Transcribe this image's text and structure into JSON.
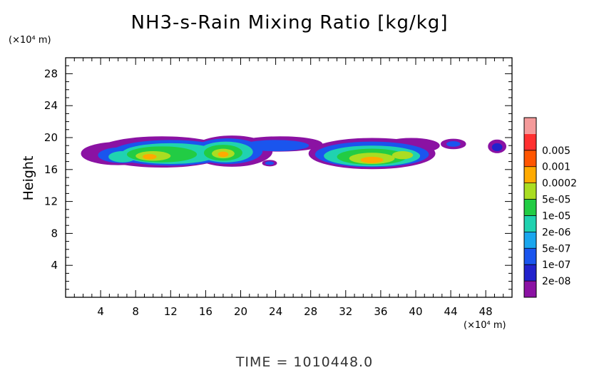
{
  "chart_data": {
    "type": "heatmap",
    "title": "NH3-s-Rain Mixing Ratio [kg/kg]",
    "xlabel": "",
    "ylabel": "Height",
    "x_unit": "(×10⁴ m)",
    "y_unit": "(×10⁴ m)",
    "xlim": [
      0,
      51
    ],
    "ylim": [
      0,
      30
    ],
    "x_ticks": [
      "4",
      "8",
      "12",
      "16",
      "20",
      "24",
      "28",
      "32",
      "36",
      "40",
      "44",
      "48"
    ],
    "y_ticks": [
      "4",
      "8",
      "12",
      "16",
      "20",
      "24",
      "28"
    ],
    "grid": false,
    "colorbar": {
      "levels": [
        "2e-08",
        "1e-07",
        "5e-07",
        "2e-06",
        "1e-05",
        "5e-05",
        "0.0002",
        "0.001",
        "0.005"
      ],
      "colors": [
        "#8b12a3",
        "#2222cc",
        "#1a55ee",
        "#1aa6ee",
        "#20d2b0",
        "#22cc44",
        "#aadd22",
        "#ffaa00",
        "#ff5500",
        "#ff3030",
        "#f49a9a"
      ]
    },
    "cloud_regions": [
      {
        "x": [
          2,
          29
        ],
        "y": [
          16.4,
          20
        ],
        "peak_level": 7
      },
      {
        "x": [
          29,
          42
        ],
        "y": [
          16.2,
          19.8
        ],
        "peak_level": 7
      },
      {
        "x": [
          22.5,
          24
        ],
        "y": [
          16.4,
          17.2
        ],
        "peak_level": 2
      },
      {
        "x": [
          43,
          46
        ],
        "y": [
          18.5,
          19.9
        ],
        "peak_level": 2
      },
      {
        "x": [
          48.5,
          50.5
        ],
        "y": [
          18.0,
          19.8
        ],
        "peak_level": 1
      }
    ],
    "blobs": [
      {
        "x": 6,
        "y": 18.0,
        "rx": 4.2,
        "ry": 1.4,
        "level": 0
      },
      {
        "x": 11,
        "y": 18.2,
        "rx": 7.6,
        "ry": 1.9,
        "level": 0
      },
      {
        "x": 19,
        "y": 18.3,
        "rx": 4.6,
        "ry": 1.9,
        "level": 0
      },
      {
        "x": 24.5,
        "y": 19.2,
        "rx": 4.8,
        "ry": 0.9,
        "level": 0
      },
      {
        "x": 35,
        "y": 18.0,
        "rx": 7.2,
        "ry": 1.9,
        "level": 0
      },
      {
        "x": 39.5,
        "y": 19.0,
        "rx": 3.2,
        "ry": 0.9,
        "level": 0
      },
      {
        "x": 6.5,
        "y": 17.8,
        "rx": 2.8,
        "ry": 1.0,
        "level": 2
      },
      {
        "x": 12,
        "y": 18.1,
        "rx": 6.8,
        "ry": 1.6,
        "level": 2
      },
      {
        "x": 18.5,
        "y": 18.3,
        "rx": 4.0,
        "ry": 1.6,
        "level": 2
      },
      {
        "x": 24,
        "y": 19.0,
        "rx": 3.8,
        "ry": 0.7,
        "level": 2
      },
      {
        "x": 35,
        "y": 17.9,
        "rx": 6.5,
        "ry": 1.6,
        "level": 2
      },
      {
        "x": 6.5,
        "y": 17.6,
        "rx": 1.6,
        "ry": 0.7,
        "level": 4
      },
      {
        "x": 12,
        "y": 18.0,
        "rx": 5.6,
        "ry": 1.3,
        "level": 4
      },
      {
        "x": 18.3,
        "y": 18.2,
        "rx": 3.1,
        "ry": 1.3,
        "level": 4
      },
      {
        "x": 35,
        "y": 17.7,
        "rx": 5.5,
        "ry": 1.3,
        "level": 4
      },
      {
        "x": 11,
        "y": 17.9,
        "rx": 4.0,
        "ry": 1.0,
        "level": 5
      },
      {
        "x": 18,
        "y": 18.1,
        "rx": 2.2,
        "ry": 1.0,
        "level": 5
      },
      {
        "x": 35,
        "y": 17.6,
        "rx": 4.0,
        "ry": 1.0,
        "level": 5
      },
      {
        "x": 10,
        "y": 17.7,
        "rx": 2.0,
        "ry": 0.6,
        "level": 6
      },
      {
        "x": 18,
        "y": 18.0,
        "rx": 1.3,
        "ry": 0.6,
        "level": 6
      },
      {
        "x": 35,
        "y": 17.4,
        "rx": 2.6,
        "ry": 0.7,
        "level": 6
      },
      {
        "x": 38.5,
        "y": 17.8,
        "rx": 1.2,
        "ry": 0.5,
        "level": 6
      },
      {
        "x": 9.6,
        "y": 17.6,
        "rx": 0.8,
        "ry": 0.35,
        "level": 7
      },
      {
        "x": 18,
        "y": 17.9,
        "rx": 0.6,
        "ry": 0.35,
        "level": 7
      },
      {
        "x": 35,
        "y": 17.2,
        "rx": 1.3,
        "ry": 0.4,
        "level": 7
      },
      {
        "x": 23.3,
        "y": 16.8,
        "rx": 0.8,
        "ry": 0.35,
        "level": 0
      },
      {
        "x": 23.3,
        "y": 16.8,
        "rx": 0.5,
        "ry": 0.22,
        "level": 2
      },
      {
        "x": 44.3,
        "y": 19.2,
        "rx": 1.4,
        "ry": 0.6,
        "level": 0
      },
      {
        "x": 44.3,
        "y": 19.2,
        "rx": 0.8,
        "ry": 0.35,
        "level": 2
      },
      {
        "x": 49.3,
        "y": 18.9,
        "rx": 1.0,
        "ry": 0.8,
        "level": 0
      },
      {
        "x": 49.3,
        "y": 18.8,
        "rx": 0.6,
        "ry": 0.5,
        "level": 1
      }
    ]
  },
  "footer": {
    "time_text": "TIME = 1010448.0"
  }
}
